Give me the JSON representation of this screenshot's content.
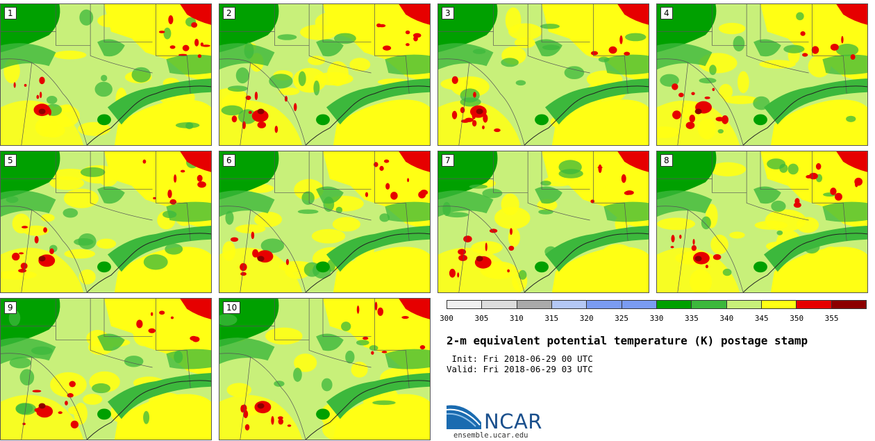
{
  "panels": [
    "1",
    "2",
    "3",
    "4",
    "5",
    "6",
    "7",
    "8",
    "9",
    "10"
  ],
  "colorbar": {
    "colors": [
      "#f0f0f0",
      "#dcdcdc",
      "#aaaaaa",
      "#b4c8f5",
      "#7b9cf2",
      "#7b9cf2",
      "#00a000",
      "#3cb83c",
      "#c8f07a",
      "#ffff14",
      "#e60000",
      "#8c0000"
    ],
    "ticks": [
      "300",
      "305",
      "310",
      "315",
      "320",
      "325",
      "330",
      "335",
      "340",
      "345",
      "350",
      "355"
    ]
  },
  "title": "2-m equivalent potential temperature (K) postage stamp",
  "init": " Init: Fri 2018-06-29 00 UTC",
  "valid": "Valid: Fri 2018-06-29 03 UTC",
  "logo": {
    "text": "NCAR",
    "url": "ensemble.ucar.edu"
  }
}
